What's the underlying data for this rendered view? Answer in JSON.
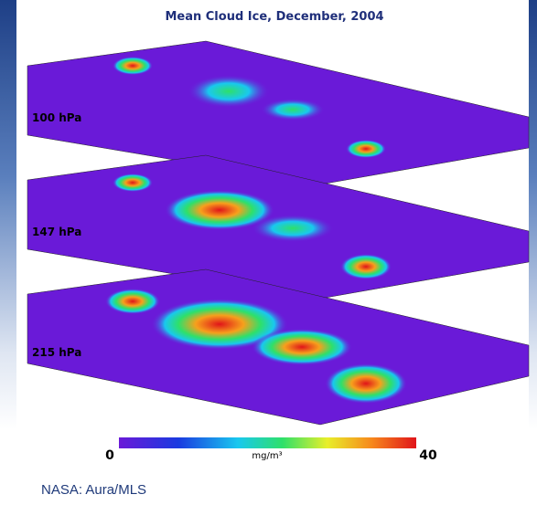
{
  "figure": {
    "title": "Mean Cloud Ice, December, 2004",
    "levels": [
      "100 hPa",
      "147 hPa",
      "215 hPa"
    ],
    "colorbar": {
      "min": "0",
      "max": "40",
      "unit": "mg/m³"
    },
    "caption": "NASA: Aura/MLS"
  }
}
